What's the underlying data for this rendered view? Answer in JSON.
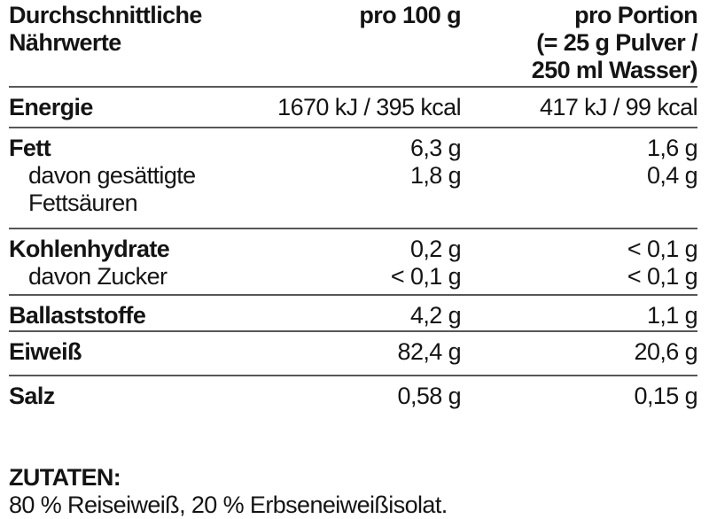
{
  "colors": {
    "background": "#ffffff",
    "text": "#141414",
    "rule": "#575757"
  },
  "table": {
    "header": {
      "label": "Durchschnittliche Nährwerte",
      "per100_label": "pro 100 g",
      "portion_label_lines": [
        "pro Portion",
        "(= 25 g Pulver /",
        "250 ml Wasser)"
      ]
    },
    "sections": [
      {
        "lines": [
          {
            "label": "Energie",
            "per100": "1670 kJ / 395 kcal",
            "portion": "417 kJ / 99 kcal"
          }
        ]
      },
      {
        "lines": [
          {
            "label": "Fett",
            "per100": "6,3 g",
            "portion": "1,6 g"
          },
          {
            "label": "davon gesättigte",
            "per100": "1,8 g",
            "portion": "0,4 g"
          },
          {
            "label": "Fettsäuren",
            "per100": "",
            "portion": ""
          }
        ]
      },
      {
        "lines": [
          {
            "label": "Kohlenhydrate",
            "per100": "0,2 g",
            "portion": "< 0,1 g"
          },
          {
            "label": "davon Zucker",
            "per100": "< 0,1 g",
            "portion": "< 0,1 g"
          }
        ]
      },
      {
        "lines": [
          {
            "label": "Ballaststoffe",
            "per100": "4,2 g",
            "portion": "1,1 g"
          }
        ]
      },
      {
        "lines": [
          {
            "label": "Eiweiß",
            "per100": "82,4 g",
            "portion": "20,6 g"
          }
        ]
      },
      {
        "lines": [
          {
            "label": "Salz",
            "per100": "0,58 g",
            "portion": "0,15 g"
          }
        ]
      }
    ]
  },
  "ingredients": {
    "heading": "ZUTATEN:",
    "text": "80 % Reiseiweiß, 20 % Erbseneiweißisolat."
  }
}
